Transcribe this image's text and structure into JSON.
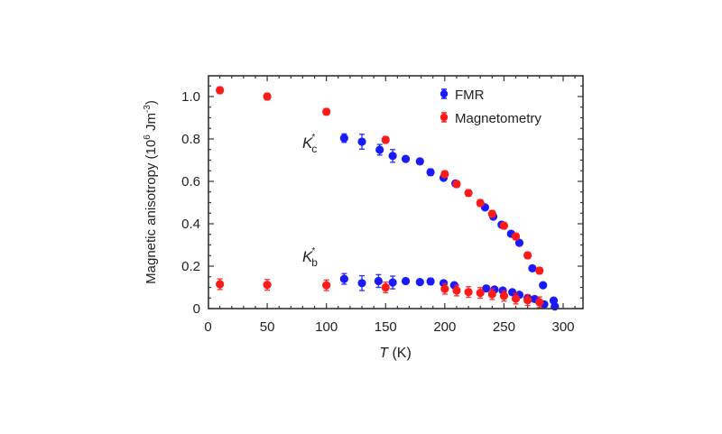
{
  "chart_data": {
    "type": "scatter",
    "title": "",
    "xlabel": "T (K)",
    "xlabel_parts": {
      "symbol": "T",
      "unit": " (K)"
    },
    "ylabel": "Magnetic anisotropy  (10^6 Jm^-3)",
    "ylabel_parts": {
      "main": "Magnetic anisotropy  (10",
      "exp1": "6",
      "mid": " Jm",
      "exp2": "-3",
      "end": ")"
    },
    "xlim": [
      0,
      320
    ],
    "ylim": [
      0,
      1.1
    ],
    "x_ticks": [
      0,
      50,
      100,
      150,
      200,
      250,
      300
    ],
    "x_tick_labels": [
      "0",
      "50",
      "100",
      "150",
      "200",
      "250",
      "300"
    ],
    "y_ticks": [
      0,
      0.2,
      0.4,
      0.6,
      0.8,
      1.0
    ],
    "y_tick_labels": [
      "0",
      "0.2",
      "0.4",
      "0.6",
      "0.8",
      "1.0"
    ],
    "grid": false,
    "legend_position": "top-right",
    "annotations": [
      {
        "text": "K",
        "sup": "*",
        "sub": "c",
        "x": 103,
        "y": 0.77
      },
      {
        "text": "K",
        "sup": "*",
        "sub": "b",
        "x": 103,
        "y": 0.23
      }
    ],
    "series": [
      {
        "name": "FMR",
        "color": "#1a1aff",
        "points": [
          {
            "x": 115,
            "y": 0.804,
            "err": 0.02
          },
          {
            "x": 130,
            "y": 0.787,
            "err": 0.035
          },
          {
            "x": 145,
            "y": 0.749,
            "err": 0.025
          },
          {
            "x": 156,
            "y": 0.72,
            "err": 0.03
          },
          {
            "x": 167,
            "y": 0.706,
            "err": 0.01
          },
          {
            "x": 179,
            "y": 0.694,
            "err": 0.01
          },
          {
            "x": 188,
            "y": 0.643,
            "err": 0.015
          },
          {
            "x": 199,
            "y": 0.617,
            "err": 0.01
          },
          {
            "x": 209,
            "y": 0.59,
            "err": 0.01
          },
          {
            "x": 234,
            "y": 0.477,
            "err": 0.01
          },
          {
            "x": 241,
            "y": 0.434,
            "err": 0.01
          },
          {
            "x": 248,
            "y": 0.396,
            "err": 0.01
          },
          {
            "x": 256,
            "y": 0.353,
            "err": 0.01
          },
          {
            "x": 263,
            "y": 0.31,
            "err": 0.01
          },
          {
            "x": 274,
            "y": 0.19,
            "err": 0.01
          },
          {
            "x": 283,
            "y": 0.11,
            "err": 0.01
          },
          {
            "x": 292,
            "y": 0.038,
            "err": 0.01
          },
          {
            "x": 115,
            "y": 0.14,
            "err": 0.025
          },
          {
            "x": 130,
            "y": 0.12,
            "err": 0.035
          },
          {
            "x": 144,
            "y": 0.13,
            "err": 0.03
          },
          {
            "x": 156,
            "y": 0.123,
            "err": 0.03
          },
          {
            "x": 167,
            "y": 0.13,
            "err": 0.01
          },
          {
            "x": 179,
            "y": 0.125,
            "err": 0.01
          },
          {
            "x": 188,
            "y": 0.128,
            "err": 0.015
          },
          {
            "x": 199,
            "y": 0.12,
            "err": 0.01
          },
          {
            "x": 208,
            "y": 0.11,
            "err": 0.01
          },
          {
            "x": 235,
            "y": 0.095,
            "err": 0.01
          },
          {
            "x": 242,
            "y": 0.09,
            "err": 0.01
          },
          {
            "x": 249,
            "y": 0.085,
            "err": 0.01
          },
          {
            "x": 257,
            "y": 0.077,
            "err": 0.01
          },
          {
            "x": 263,
            "y": 0.065,
            "err": 0.01
          },
          {
            "x": 270,
            "y": 0.05,
            "err": 0.01
          },
          {
            "x": 276,
            "y": 0.045,
            "err": 0.01
          },
          {
            "x": 284,
            "y": 0.02,
            "err": 0.01
          },
          {
            "x": 293,
            "y": 0.01,
            "err": 0.01
          }
        ]
      },
      {
        "name": "Magnetometry",
        "color": "#ff1a1a",
        "points": [
          {
            "x": 10,
            "y": 1.03,
            "err": 0.015
          },
          {
            "x": 50,
            "y": 1.0,
            "err": 0.015
          },
          {
            "x": 100,
            "y": 0.928,
            "err": 0.015
          },
          {
            "x": 150,
            "y": 0.796,
            "err": 0.015
          },
          {
            "x": 200,
            "y": 0.634,
            "err": 0.015
          },
          {
            "x": 210,
            "y": 0.587,
            "err": 0.015
          },
          {
            "x": 220,
            "y": 0.545,
            "err": 0.015
          },
          {
            "x": 230,
            "y": 0.498,
            "err": 0.015
          },
          {
            "x": 240,
            "y": 0.447,
            "err": 0.015
          },
          {
            "x": 250,
            "y": 0.391,
            "err": 0.015
          },
          {
            "x": 260,
            "y": 0.34,
            "err": 0.015
          },
          {
            "x": 270,
            "y": 0.251,
            "err": 0.015
          },
          {
            "x": 280,
            "y": 0.179,
            "err": 0.015
          },
          {
            "x": 10,
            "y": 0.115,
            "err": 0.025
          },
          {
            "x": 50,
            "y": 0.112,
            "err": 0.025
          },
          {
            "x": 100,
            "y": 0.11,
            "err": 0.025
          },
          {
            "x": 150,
            "y": 0.1,
            "err": 0.025
          },
          {
            "x": 200,
            "y": 0.093,
            "err": 0.025
          },
          {
            "x": 210,
            "y": 0.085,
            "err": 0.025
          },
          {
            "x": 220,
            "y": 0.078,
            "err": 0.025
          },
          {
            "x": 230,
            "y": 0.074,
            "err": 0.025
          },
          {
            "x": 240,
            "y": 0.068,
            "err": 0.025
          },
          {
            "x": 250,
            "y": 0.06,
            "err": 0.025
          },
          {
            "x": 260,
            "y": 0.047,
            "err": 0.025
          },
          {
            "x": 270,
            "y": 0.04,
            "err": 0.025
          },
          {
            "x": 280,
            "y": 0.03,
            "err": 0.025
          }
        ]
      }
    ]
  }
}
